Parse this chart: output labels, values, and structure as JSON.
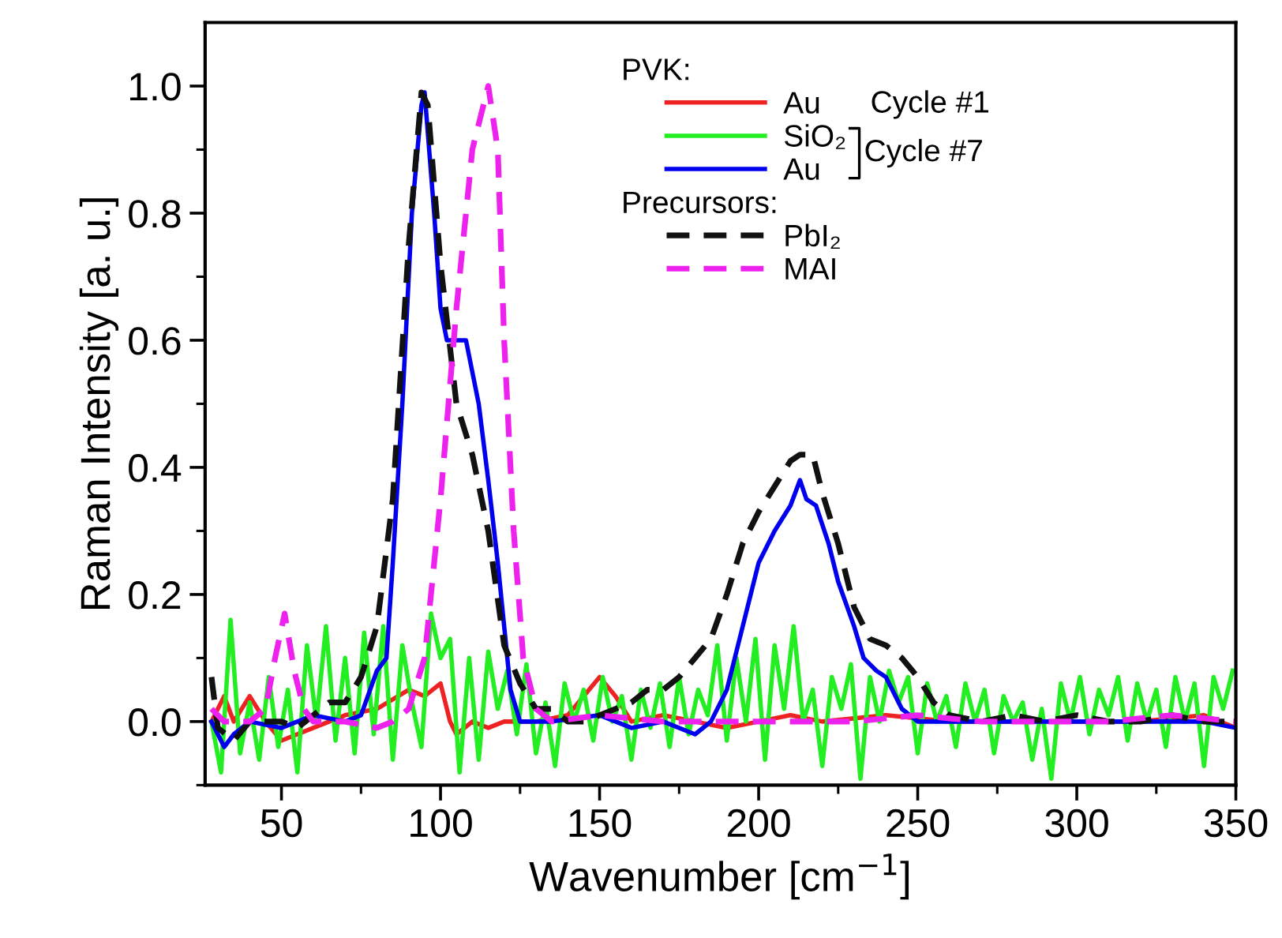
{
  "chart_data": {
    "type": "line",
    "xlabel": "Wavenumber [cm$^{−1}$]",
    "ylabel": "Raman Intensity [a. u.]",
    "legend_title": "PVK:",
    "annotations": [
      "Precursors:",
      "Cycle #1",
      "Cycle #7"
    ],
    "xlim": [
      26,
      350
    ],
    "xticks": [
      50,
      100,
      150,
      200,
      250,
      300,
      350
    ],
    "ylim": [
      -0.1,
      1.1
    ],
    "yticks": [
      {
        "value": 0,
        "label": "0.0"
      },
      {
        "value": 0.2,
        "label": "0.2"
      },
      {
        "value": 0.4,
        "label": "0.4"
      },
      {
        "value": 0.6,
        "label": "0.6"
      },
      {
        "value": 0.8,
        "label": "0.8"
      },
      {
        "value": 1.0,
        "label": "1.0"
      }
    ],
    "grid": false,
    "legend": "top right",
    "series": [
      {
        "name": "Au",
        "color": "#ee2222",
        "line_style": "solid",
        "x": [
          28,
          32,
          35,
          40,
          45,
          50,
          60,
          70,
          80,
          90,
          95,
          100,
          103,
          105,
          110,
          115,
          120,
          130,
          140,
          145,
          150,
          155,
          160,
          170,
          180,
          190,
          200,
          210,
          220,
          240,
          260,
          280,
          300,
          320,
          340,
          350
        ],
        "values": [
          0.0,
          0.04,
          0.0,
          0.04,
          0.0,
          -0.03,
          -0.01,
          0.01,
          0.02,
          0.05,
          0.04,
          0.06,
          0.0,
          -0.02,
          0.0,
          -0.01,
          0.0,
          0.0,
          0.01,
          0.04,
          0.07,
          0.04,
          0.0,
          0.01,
          0.0,
          -0.01,
          0.0,
          0.01,
          0.0,
          0.01,
          0.0,
          0.0,
          0.0,
          0.0,
          0.01,
          -0.01
        ]
      },
      {
        "name": "SiO₂",
        "color": "#22ee22",
        "line_style": "solid",
        "x": [
          28,
          31,
          34,
          37,
          40,
          43,
          46,
          49,
          52,
          55,
          58,
          61,
          64,
          67,
          70,
          73,
          76,
          79,
          82,
          85,
          88,
          91,
          94,
          97,
          100,
          103,
          106,
          109,
          112,
          115,
          118,
          121,
          124,
          127,
          130,
          133,
          136,
          139,
          142,
          145,
          148,
          151,
          154,
          157,
          160,
          163,
          166,
          169,
          172,
          175,
          178,
          181,
          184,
          187,
          190,
          193,
          196,
          199,
          202,
          205,
          208,
          211,
          214,
          217,
          220,
          223,
          226,
          229,
          232,
          235,
          238,
          241,
          244,
          247,
          250,
          253,
          256,
          259,
          262,
          265,
          268,
          271,
          274,
          277,
          280,
          283,
          286,
          289,
          292,
          295,
          298,
          301,
          304,
          307,
          310,
          313,
          316,
          319,
          322,
          325,
          328,
          331,
          334,
          337,
          340,
          343,
          346,
          349
        ],
        "values": [
          0.0,
          -0.08,
          0.16,
          -0.05,
          0.03,
          -0.06,
          0.07,
          -0.04,
          0.05,
          -0.08,
          0.12,
          0.0,
          0.15,
          -0.03,
          0.1,
          -0.05,
          0.14,
          -0.02,
          0.15,
          -0.06,
          0.12,
          0.03,
          -0.04,
          0.17,
          0.1,
          0.13,
          -0.08,
          0.1,
          -0.06,
          0.11,
          0.02,
          0.08,
          -0.02,
          0.09,
          -0.05,
          0.03,
          -0.07,
          0.06,
          0.0,
          0.05,
          -0.03,
          0.07,
          0.0,
          0.04,
          -0.06,
          0.05,
          -0.01,
          0.06,
          -0.04,
          0.07,
          -0.02,
          0.05,
          0.01,
          0.12,
          -0.03,
          0.1,
          0.0,
          0.13,
          -0.06,
          0.12,
          0.02,
          0.15,
          0.0,
          0.05,
          -0.07,
          0.07,
          0.02,
          0.09,
          -0.09,
          0.07,
          0.0,
          0.08,
          0.03,
          0.07,
          -0.05,
          0.06,
          0.0,
          0.04,
          -0.04,
          0.06,
          0.0,
          0.05,
          -0.05,
          0.04,
          0.0,
          0.03,
          -0.06,
          0.02,
          -0.09,
          0.06,
          0.0,
          0.07,
          -0.02,
          0.05,
          0.01,
          0.07,
          -0.03,
          0.06,
          0.0,
          0.05,
          -0.04,
          0.07,
          0.0,
          0.06,
          -0.07,
          0.07,
          0.02,
          0.08
        ]
      },
      {
        "name": "Au",
        "color": "#0000ee",
        "line_style": "solid",
        "x": [
          28,
          32,
          35,
          40,
          50,
          60,
          70,
          75,
          80,
          83,
          85,
          88,
          91,
          94,
          95,
          98,
          100,
          102,
          105,
          108,
          110,
          112,
          115,
          118,
          120,
          122,
          125,
          135,
          150,
          160,
          170,
          180,
          185,
          190,
          195,
          200,
          205,
          210,
          213,
          215,
          218,
          222,
          225,
          230,
          233,
          237,
          240,
          245,
          250,
          260,
          280,
          300,
          320,
          340,
          350
        ],
        "values": [
          0.0,
          -0.04,
          -0.02,
          0.0,
          -0.01,
          0.01,
          0.0,
          0.01,
          0.08,
          0.1,
          0.25,
          0.5,
          0.8,
          0.97,
          0.99,
          0.8,
          0.65,
          0.6,
          0.6,
          0.6,
          0.55,
          0.5,
          0.38,
          0.25,
          0.15,
          0.05,
          0.0,
          0.0,
          0.01,
          -0.01,
          0.0,
          -0.02,
          0.0,
          0.05,
          0.15,
          0.25,
          0.3,
          0.34,
          0.38,
          0.35,
          0.34,
          0.28,
          0.22,
          0.15,
          0.1,
          0.08,
          0.07,
          0.02,
          0.0,
          0.0,
          0.0,
          0.0,
          0.0,
          0.0,
          -0.01
        ]
      },
      {
        "name": "PbI₂",
        "color": "#111111",
        "line_style": "dashed",
        "x": [
          28,
          30,
          35,
          40,
          50,
          55,
          60,
          65,
          70,
          75,
          80,
          85,
          90,
          94,
          96,
          100,
          105,
          110,
          115,
          120,
          125,
          130,
          135,
          140,
          145,
          150,
          160,
          165,
          170,
          175,
          180,
          185,
          190,
          195,
          200,
          205,
          210,
          213,
          217,
          220,
          225,
          230,
          235,
          240,
          245,
          250,
          255,
          260,
          270,
          280,
          290,
          300,
          310,
          320,
          330,
          340,
          350
        ],
        "values": [
          0.07,
          -0.01,
          -0.03,
          0.0,
          0.0,
          -0.01,
          0.01,
          0.03,
          0.03,
          0.07,
          0.15,
          0.35,
          0.75,
          0.99,
          0.97,
          0.72,
          0.5,
          0.42,
          0.3,
          0.12,
          0.06,
          0.02,
          0.02,
          0.0,
          0.0,
          0.01,
          0.03,
          0.05,
          0.05,
          0.07,
          0.1,
          0.13,
          0.2,
          0.28,
          0.33,
          0.37,
          0.41,
          0.42,
          0.42,
          0.36,
          0.28,
          0.18,
          0.13,
          0.12,
          0.1,
          0.07,
          0.03,
          0.01,
          0.0,
          0.01,
          0.0,
          0.01,
          0.0,
          0.0,
          0.01,
          0.0,
          0.0
        ]
      },
      {
        "name": "MAI",
        "color": "#ee22ee",
        "line_style": "dashed",
        "x": [
          28,
          32,
          40,
          45,
          48,
          51,
          54,
          57,
          60,
          70,
          80,
          85,
          90,
          95,
          100,
          105,
          110,
          115,
          118,
          120,
          123,
          126,
          130,
          135,
          150,
          170,
          190,
          210,
          230,
          250,
          270,
          290,
          310,
          330,
          350
        ],
        "values": [
          0.02,
          0.0,
          0.0,
          0.02,
          0.1,
          0.17,
          0.08,
          0.02,
          0.0,
          0.0,
          -0.01,
          0.0,
          0.02,
          0.1,
          0.35,
          0.65,
          0.9,
          1.0,
          0.9,
          0.6,
          0.3,
          0.1,
          0.02,
          0.0,
          0.01,
          0.0,
          0.0,
          0.0,
          0.0,
          0.01,
          0.0,
          0.0,
          0.0,
          0.01,
          0.0
        ]
      }
    ]
  }
}
